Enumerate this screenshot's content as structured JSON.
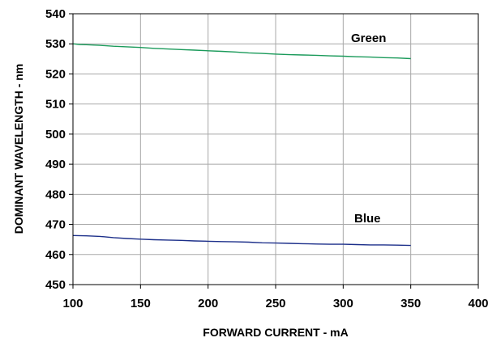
{
  "chart_data": {
    "type": "line",
    "xlabel": "FORWARD CURRENT - mA",
    "ylabel": "DOMINANT WAVELENGTH - nm",
    "xlim": [
      100,
      400
    ],
    "ylim": [
      450,
      540
    ],
    "x_ticks": [
      100,
      150,
      200,
      250,
      300,
      350,
      400
    ],
    "y_ticks": [
      450,
      460,
      470,
      480,
      490,
      500,
      510,
      520,
      530,
      540
    ],
    "grid": true,
    "series": [
      {
        "name": "Green",
        "color": "#1a9a5a",
        "x": [
          100,
          105,
          110,
          120,
          130,
          140,
          150,
          160,
          170,
          180,
          190,
          200,
          210,
          220,
          230,
          240,
          250,
          260,
          270,
          280,
          290,
          300,
          310,
          320,
          330,
          340,
          350
        ],
        "y": [
          530.0,
          529.8,
          529.7,
          529.5,
          529.2,
          529.0,
          528.8,
          528.5,
          528.3,
          528.1,
          527.9,
          527.7,
          527.5,
          527.3,
          527.0,
          526.8,
          526.6,
          526.4,
          526.3,
          526.2,
          526.0,
          525.9,
          525.7,
          525.6,
          525.4,
          525.3,
          525.1
        ]
      },
      {
        "name": "Blue",
        "color": "#1c2f8a",
        "x": [
          100,
          110,
          120,
          130,
          140,
          150,
          160,
          170,
          180,
          190,
          200,
          210,
          220,
          230,
          240,
          250,
          260,
          270,
          280,
          290,
          300,
          310,
          320,
          330,
          340,
          350
        ],
        "y": [
          466.3,
          466.2,
          466.0,
          465.6,
          465.3,
          465.1,
          464.9,
          464.8,
          464.7,
          464.5,
          464.4,
          464.3,
          464.2,
          464.1,
          463.9,
          463.8,
          463.7,
          463.6,
          463.5,
          463.4,
          463.4,
          463.3,
          463.2,
          463.2,
          463.1,
          463.0
        ]
      }
    ]
  }
}
